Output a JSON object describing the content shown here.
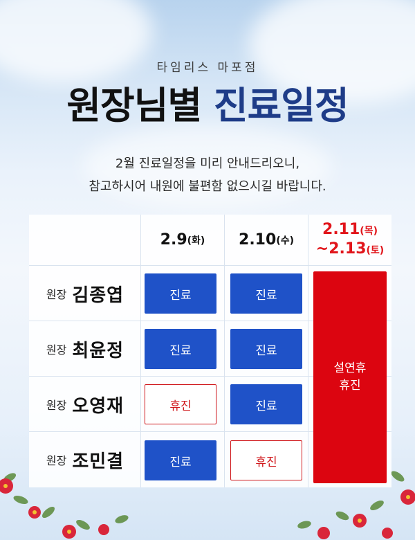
{
  "header": {
    "clinic": "타임리스 마포점",
    "title_dark": "원장님별",
    "title_blue": "진료일정",
    "notice_line1": "2월 진료일정을 미리 안내드리오니,",
    "notice_line2": "참고하시어 내원에 불편함 없으시길 바랍니다."
  },
  "table": {
    "role": "원장",
    "columns": [
      {
        "date": "2.9",
        "day": "(화)"
      },
      {
        "date": "2.10",
        "day": "(수)"
      },
      {
        "line1_date": "2.11",
        "line1_day": "(목)",
        "line2_date": "~2.13",
        "line2_day": "(토)"
      }
    ],
    "doctors": [
      {
        "name": "김종엽",
        "status": [
          "진료",
          "진료"
        ]
      },
      {
        "name": "최윤정",
        "status": [
          "진료",
          "진료"
        ]
      },
      {
        "name": "오영재",
        "status": [
          "휴진",
          "진료"
        ]
      },
      {
        "name": "조민결",
        "status": [
          "진료",
          "휴진"
        ]
      }
    ],
    "holiday_line1": "설연휴",
    "holiday_line2": "휴진"
  },
  "colors": {
    "title_blue": "#1e3c88",
    "open_cell": "#1f52c8",
    "closed_text": "#d0181c",
    "holiday_red": "#dc0510"
  }
}
